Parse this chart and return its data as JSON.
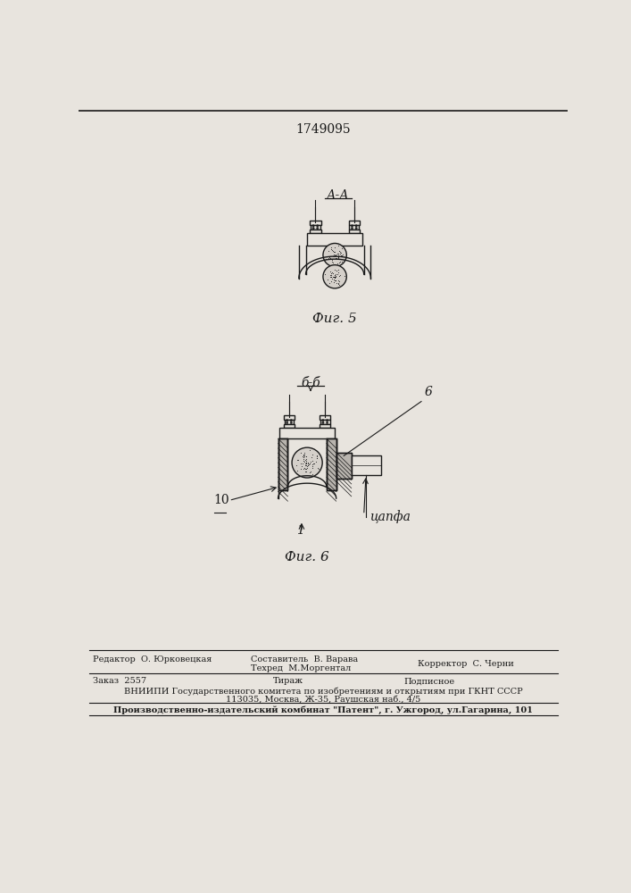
{
  "patent_number": "1749095",
  "fig5_label": "А-А",
  "fig5_caption": "Фиг. 5",
  "fig6_label": "б-б",
  "fig6_caption": "Фиг. 6",
  "fig6_annotation_6": "6",
  "fig6_annotation_10": "10",
  "fig6_annotation_1": "1",
  "fig6_annotation_chalfa": "цапфа",
  "footer_line1_left": "Редактор  О. Юрковецкая",
  "footer_line1_center_top": "Составитель  В. Варава",
  "footer_line1_center_bot": "Техред  М.Моргентал",
  "footer_line1_right": "Корректор  С. Черни",
  "footer_line2_left": "Заказ  2557",
  "footer_line2_center": "Тираж",
  "footer_line2_right": "Подписное",
  "footer_line3": "ВНИИПИ Государственного комитета по изобретениям и открытиям при ГКНТ СССР",
  "footer_line4": "113035, Москва, Ж-35, Раушская наб., 4/5",
  "footer_line5": "Производственно-издательский комбинат \"Патент\", г. Ужгород, ул.Гагарина, 101",
  "bg_color": "#e8e4de",
  "line_color": "#1a1a1a"
}
